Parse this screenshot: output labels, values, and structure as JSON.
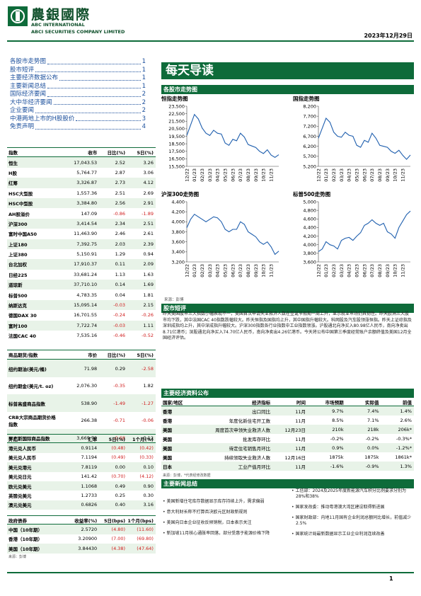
{
  "header": {
    "brand": "農銀國際",
    "brand_en": "ABC INTERNATIONAL",
    "company": "ABCI SECURITIES COMPANY LIMITED",
    "date": "2023年12月29日"
  },
  "toc": [
    [
      "各股市走势图",
      "1"
    ],
    [
      "股市短评",
      "1"
    ],
    [
      "主要经济数据公布",
      "1"
    ],
    [
      "主要新闻总结",
      "1"
    ],
    [
      "国际经济要闻",
      "2"
    ],
    [
      "大中华经济要闻",
      "2"
    ],
    [
      "企业要闻",
      "2"
    ],
    [
      "中港两地上市的H股股价",
      "3"
    ],
    [
      "免责声明",
      "4"
    ]
  ],
  "banner": "每天导读",
  "charts_section": "各股市走势图",
  "chart_data": [
    {
      "type": "line",
      "title": "恒指走势图",
      "color": "#1f5fae",
      "categories": [
        "12/22",
        null,
        "01/23",
        null,
        "02/23",
        null,
        "03/23",
        null,
        "04/23",
        null,
        "05/23",
        null,
        "06/23",
        null,
        "07/23",
        null,
        "08/23",
        null,
        "09/23",
        null,
        "10/23",
        null,
        "11/23",
        null,
        null
      ],
      "values": [
        19600,
        21000,
        22400,
        21800,
        20600,
        19900,
        19600,
        20300,
        19900,
        19800,
        18600,
        18300,
        19100,
        18900,
        19900,
        19400,
        18400,
        18200,
        18000,
        17500,
        17200,
        17700,
        17000,
        16700,
        17043
      ],
      "ylim": [
        15500,
        23500
      ],
      "yticks": [
        {
          "value": 15500,
          "label": "15,500"
        },
        {
          "value": 16500,
          "label": "16,500"
        },
        {
          "value": 17500,
          "label": "17,500"
        },
        {
          "value": 18500,
          "label": "18,500"
        },
        {
          "value": 19500,
          "label": "19,500"
        },
        {
          "value": 20500,
          "label": "20,500"
        },
        {
          "value": 21500,
          "label": "21,500"
        },
        {
          "value": 22500,
          "label": "22,500"
        },
        {
          "value": 23500,
          "label": "23,500"
        }
      ]
    },
    {
      "type": "line",
      "title": "国指走势图",
      "color": "#1f5fae",
      "categories": [
        "12/22",
        null,
        "01/23",
        null,
        "02/23",
        null,
        "03/23",
        null,
        "04/23",
        null,
        "05/23",
        null,
        "06/23",
        null,
        "07/23",
        null,
        "08/23",
        null,
        "09/23",
        null,
        "10/23",
        null,
        "11/23",
        null,
        null
      ],
      "values": [
        6600,
        7100,
        7600,
        7400,
        6900,
        6700,
        6650,
        6900,
        6750,
        6700,
        6250,
        6150,
        6500,
        6400,
        6850,
        6600,
        6250,
        6200,
        6150,
        5950,
        5850,
        6000,
        5750,
        5550,
        5765
      ],
      "ylim": [
        5200,
        8200
      ],
      "yticks": [
        {
          "value": 5200,
          "label": "5,200"
        },
        {
          "value": 5700,
          "label": "5,700"
        },
        {
          "value": 6200,
          "label": "6,200"
        },
        {
          "value": 6700,
          "label": "6,700"
        },
        {
          "value": 7200,
          "label": "7,200"
        },
        {
          "value": 7700,
          "label": "7,700"
        },
        {
          "value": 8200,
          "label": "8,200"
        }
      ]
    },
    {
      "type": "line",
      "title": "沪深300走势图",
      "color": "#1f5fae",
      "categories": [
        "12/22",
        null,
        "01/23",
        null,
        "02/23",
        null,
        "03/23",
        null,
        "04/23",
        null,
        "05/23",
        null,
        "06/23",
        null,
        "07/23",
        null,
        "08/23",
        null,
        "09/23",
        null,
        "10/23",
        null,
        "11/23",
        null,
        null
      ],
      "values": [
        3880,
        4050,
        4150,
        4100,
        4050,
        4000,
        4050,
        4100,
        4080,
        4000,
        3850,
        3800,
        3850,
        3850,
        4000,
        3950,
        3800,
        3750,
        3700,
        3600,
        3550,
        3600,
        3500,
        3350,
        3414
      ],
      "ylim": [
        3200,
        4400
      ],
      "yticks": [
        {
          "value": 3200,
          "label": "3,200"
        },
        {
          "value": 3400,
          "label": "3,400"
        },
        {
          "value": 3600,
          "label": "3,600"
        },
        {
          "value": 3800,
          "label": "3,800"
        },
        {
          "value": 4000,
          "label": "4,000"
        },
        {
          "value": 4200,
          "label": "4,200"
        },
        {
          "value": 4400,
          "label": "4,400"
        }
      ]
    },
    {
      "type": "line",
      "title": "标普500走势图",
      "color": "#1f5fae",
      "categories": [
        "12/22",
        null,
        "01/23",
        null,
        "02/23",
        null,
        "03/23",
        null,
        "04/23",
        null,
        "05/23",
        null,
        "06/23",
        null,
        "07/23",
        null,
        "08/23",
        null,
        "09/23",
        null,
        "10/23",
        null,
        "11/23",
        null,
        null
      ],
      "values": [
        3840,
        3900,
        4070,
        4000,
        3970,
        3900,
        4100,
        4150,
        4170,
        4100,
        4200,
        4280,
        4450,
        4500,
        4580,
        4500,
        4450,
        4500,
        4300,
        4250,
        4150,
        4400,
        4550,
        4700,
        4783
      ],
      "ylim": [
        3600,
        5000
      ],
      "yticks": [
        {
          "value": 3600,
          "label": "3,600"
        },
        {
          "value": 3800,
          "label": "3,800"
        },
        {
          "value": 4000,
          "label": "4,000"
        },
        {
          "value": 4200,
          "label": "4,200"
        },
        {
          "value": 4400,
          "label": "4,400"
        },
        {
          "value": 4600,
          "label": "4,600"
        },
        {
          "value": 4800,
          "label": "4,800"
        },
        {
          "value": 5000,
          "label": "5,000"
        }
      ]
    }
  ],
  "charts_source": "来源：彭博",
  "commentary": {
    "title": "股市短评",
    "text": "昨天美国股市三大指数小幅表现不一，美国首次申请失业救济人数在圣诞节假期一周上升，显示就业市场仍具韧性。昨天欧洲三大股市均下跌，其中法国CAC 40指数跌幅较大。昨天恒指及国指均上升，其中国指升幅较大。科网股及汽车股领涨恒指。昨天上证综指及深圳成指均上升，其中深成指升幅较大。沪深300指数各行业指数中工业指数领涨。沪股通北向净买入80.98亿人民币，南向净卖出8.71亿港币；深股通北向净买入74.70亿人民币，南向净卖出4.26亿港币。今天将公布中国第三季度经常账户余额终值及美国12月全国经济评估。"
  },
  "index_table": {
    "header": [
      "指数",
      "收市",
      "日比(%)",
      "5日(%)"
    ],
    "rows": [
      [
        "恒生",
        "17,043.53",
        "2.52",
        "3.26"
      ],
      [
        "H股",
        "5,764.77",
        "2.87",
        "3.06"
      ],
      [
        "红筹",
        "3,326.87",
        "2.73",
        "4.12"
      ],
      [
        "HSC大型股",
        "1,557.36",
        "2.51",
        "2.69"
      ],
      [
        "HSC中型股",
        "3,384.80",
        "2.56",
        "2.91"
      ],
      [
        "AH股溢价",
        "147.09",
        "-0.86",
        "-1.89"
      ],
      [
        "沪深300",
        "3,414.54",
        "2.34",
        "2.51"
      ],
      [
        "富时中国A50",
        "11,463.90",
        "2.46",
        "2.61"
      ],
      [
        "上证180",
        "7,392.75",
        "2.03",
        "2.39"
      ],
      [
        "上证380",
        "5,150.91",
        "1.29",
        "0.94"
      ],
      [
        "台北加权",
        "17,910.37",
        "0.11",
        "2.09"
      ],
      [
        "日经225",
        "33,681.24",
        "1.13",
        "1.63"
      ],
      [
        "道琼斯",
        "37,710.10",
        "0.14",
        "1.69"
      ],
      [
        "标普500",
        "4,783.35",
        "0.04",
        "1.81"
      ],
      [
        "纳斯达克",
        "15,095.14",
        "-0.03",
        "2.15"
      ],
      [
        "德国DAX 30",
        "16,701.55",
        "-0.24",
        "-0.26"
      ],
      [
        "富时100",
        "7,722.74",
        "-0.03",
        "1.11"
      ],
      [
        "法国CAC 40",
        "7,535.16",
        "-0.46",
        "-0.52"
      ]
    ]
  },
  "commodity_table": {
    "header": [
      "商品期货/指数",
      "市价",
      "日比(%)",
      "5日(%)"
    ],
    "rows": [
      [
        "纽约期油(美元/桶)",
        "71.98",
        "0.29",
        "-2.58"
      ],
      [
        "纽约期金(美元/t. oz)",
        "2,076.30",
        "-0.35",
        "1.82"
      ],
      [
        "标普高盛商品指数",
        "538.90",
        "-1.49",
        "-1.27"
      ],
      [
        "CRB大宗商品期货价格指数",
        "266.38",
        "-0.71",
        "-0.06"
      ],
      [
        "罗杰斯国际商品指数",
        "3,669.70",
        "-0.68",
        "0.12"
      ]
    ]
  },
  "fx_table": {
    "header": [
      "外汇",
      "汇率",
      "5日(%)",
      "1个月(%)"
    ],
    "rows": [
      [
        "港元兑人民币",
        "0.9114",
        "(0.48)",
        "(0.42)"
      ],
      [
        "美元兑人民币",
        "7.1194",
        "(0.49)",
        "(0.33)"
      ],
      [
        "美元兑港元",
        "7.8119",
        "0.00",
        "0.10"
      ],
      [
        "美元兑日元",
        "141.42",
        "(0.70)",
        "(4.12)"
      ],
      [
        "欧元兑美元",
        "1.1068",
        "0.49",
        "0.90"
      ],
      [
        "英镑兑美元",
        "1.2733",
        "0.25",
        "0.30"
      ],
      [
        "澳元兑美元",
        "0.6826",
        "0.40",
        "3.16"
      ]
    ]
  },
  "bond_table": {
    "header": [
      "政府债券",
      "收益率(%)",
      "5日(bps)",
      "1个月(bps)"
    ],
    "rows": [
      [
        "中国（10年期）",
        "2.5720",
        "(4.80)",
        "(11.60)"
      ],
      [
        "香港（10年期）",
        "3.20900",
        "(7.00)",
        "(69.80)"
      ],
      [
        "美国（10年期）",
        "3.84430",
        "(4.38)",
        "(47.64)"
      ]
    ]
  },
  "left_source": "来源：彭博",
  "econ": {
    "title": "主要经济资料公布",
    "header": [
      "国家/地区",
      "经济指标",
      "时间",
      "市场预期",
      "实际值",
      "前值"
    ],
    "rows": [
      [
        "香港",
        "出口同比",
        "11月",
        "9.7%",
        "7.4%",
        "1.4%"
      ],
      [
        "香港",
        "年度化新住宅开工数",
        "11月",
        "8.5%",
        "7.1%",
        "2.6%"
      ],
      [
        "美国",
        "周度首次申领失业救济人数",
        "12月23日",
        "210k",
        "218k",
        "206k*"
      ],
      [
        "美国",
        "批发库存环比",
        "11月",
        "-0.2%",
        "-0.2%",
        "-0.3%*"
      ],
      [
        "美国",
        "待定住宅销售月环比",
        "11月",
        "0.9%",
        "0.0%",
        "-1.2%*"
      ],
      [
        "美国",
        "持续领取失业救济人数",
        "12月16日",
        "1875k",
        "1875k",
        "1861k*"
      ],
      [
        "日本",
        "工业产值月环比",
        "11月",
        "-1.6%",
        "-0.9%",
        "1.3%"
      ]
    ],
    "source": "来源：彭博，*代表经修改数据"
  },
  "news": {
    "title": "主要新闻总结",
    "left": [
      "• 美国新增住宅库存数据显示库存持续上升，需求偏弱",
      "• 意大利财长称不打算否决欧元区财政新规则",
      "• 美国向日本企业征收反倾销税，日本表示关注",
      "• 新加坡11月核心通胀率回落，部分受惠于能源价格下降"
    ],
    "right": [
      "• 工信部：2024及2025年度新能源汽车积分比例要求分别为28%和38%",
      "• 国家发改委：推动粤港澳大湾区建设取得新进展",
      "• 国家财政部：内地11月国有企业利润总额同比增长，前值减少2.5%",
      "• 国家统计局最新数据显示工业企业利润连续改善"
    ]
  },
  "page_number": "1"
}
